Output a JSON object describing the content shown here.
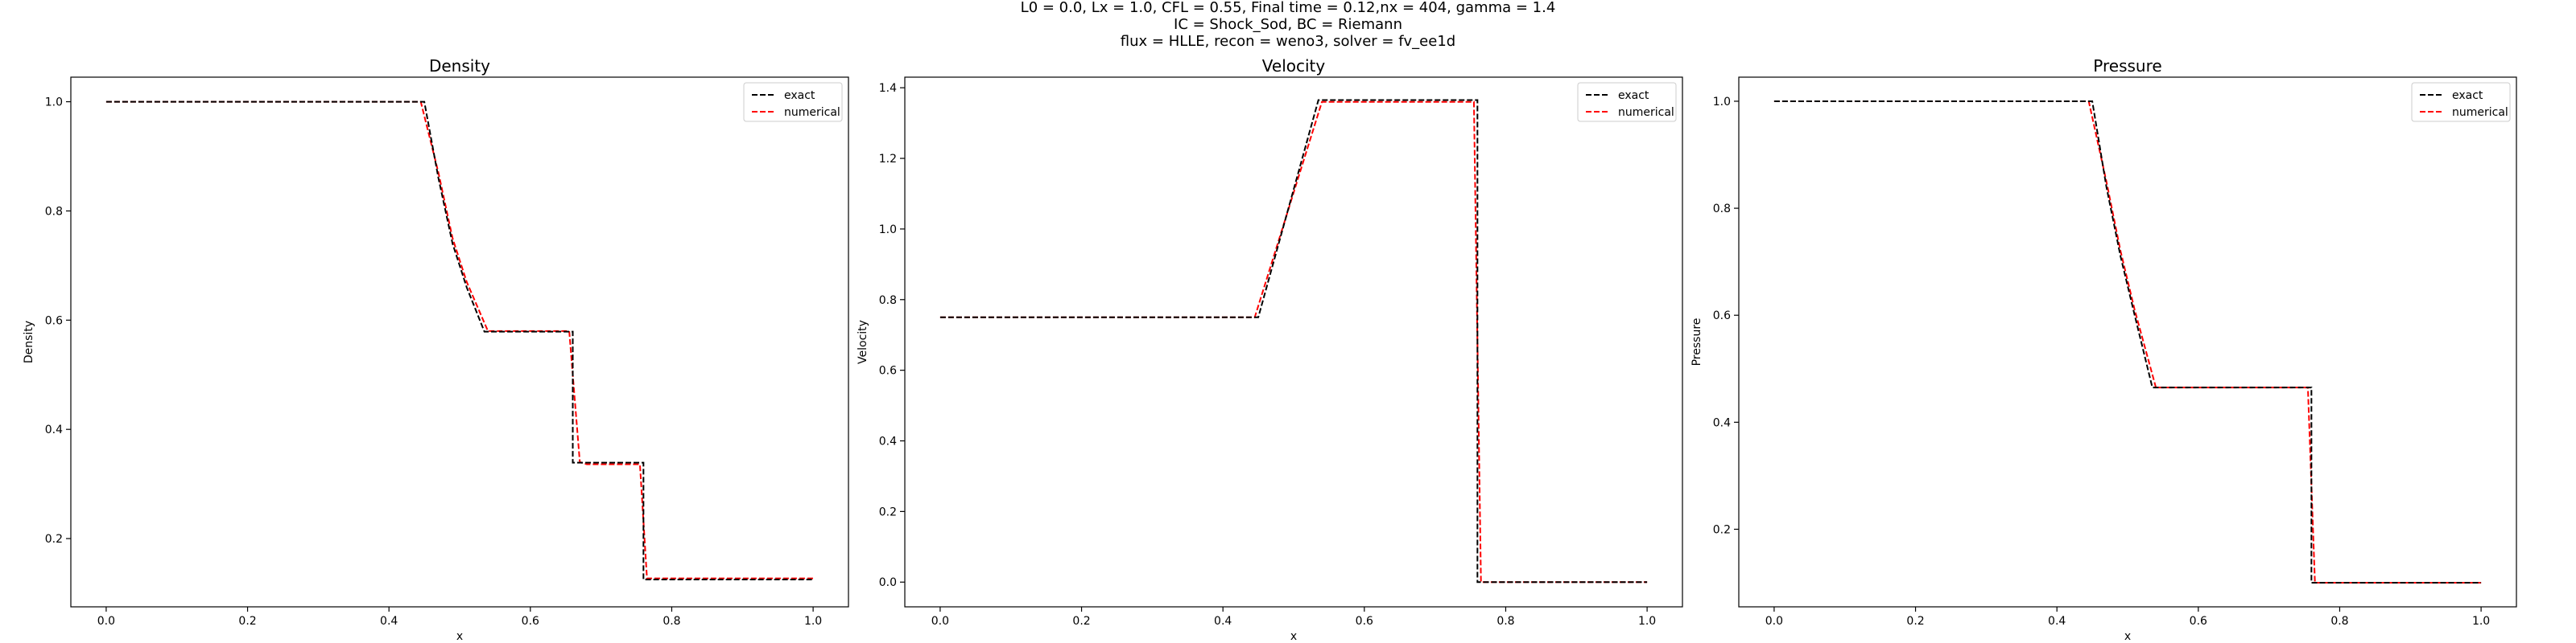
{
  "figure": {
    "suptitle": [
      "L0 = 0.0, Lx = 1.0, CFL = 0.55, Final time = 0.12,nx = 404, gamma = 1.4",
      "IC = Shock_Sod, BC = Riemann",
      "flux = HLLE, recon = weno3, solver = fv_ee1d"
    ]
  },
  "colors": {
    "exact": "#000000",
    "numerical": "#ff0000",
    "axes": "#000000"
  },
  "chart_data": [
    {
      "type": "line",
      "title": "Density",
      "xlabel": "x",
      "ylabel": "Density",
      "xlim": [
        -0.05,
        1.05
      ],
      "ylim": [
        0.075,
        1.045
      ],
      "xticks": [
        0.0,
        0.2,
        0.4,
        0.6,
        0.8,
        1.0
      ],
      "xtick_labels": [
        "0.0",
        "0.2",
        "0.4",
        "0.6",
        "0.8",
        "1.0"
      ],
      "yticks": [
        0.2,
        0.4,
        0.6,
        0.8,
        1.0
      ],
      "ytick_labels": [
        "0.2",
        "0.4",
        "0.6",
        "0.8",
        "1.0"
      ],
      "legend": "top-right",
      "grid": false,
      "series": [
        {
          "name": "exact",
          "style": "dashed",
          "x": [
            0.0,
            0.45,
            0.47,
            0.49,
            0.51,
            0.535,
            0.66,
            0.66,
            0.76,
            0.76,
            1.0
          ],
          "y": [
            1.0,
            1.0,
            0.86,
            0.74,
            0.66,
            0.579,
            0.579,
            0.339,
            0.339,
            0.125,
            0.125
          ]
        },
        {
          "name": "numerical",
          "style": "dashed",
          "x": [
            0.0,
            0.445,
            0.47,
            0.49,
            0.51,
            0.54,
            0.655,
            0.67,
            0.68,
            0.755,
            0.765,
            1.0
          ],
          "y": [
            1.0,
            1.0,
            0.87,
            0.75,
            0.67,
            0.58,
            0.58,
            0.34,
            0.336,
            0.336,
            0.127,
            0.127
          ]
        }
      ]
    },
    {
      "type": "line",
      "title": "Velocity",
      "xlabel": "x",
      "ylabel": "Velocity",
      "xlim": [
        -0.05,
        1.05
      ],
      "ylim": [
        -0.07,
        1.43
      ],
      "xticks": [
        0.0,
        0.2,
        0.4,
        0.6,
        0.8,
        1.0
      ],
      "xtick_labels": [
        "0.0",
        "0.2",
        "0.4",
        "0.6",
        "0.8",
        "1.0"
      ],
      "yticks": [
        0.0,
        0.2,
        0.4,
        0.6,
        0.8,
        1.0,
        1.2,
        1.4
      ],
      "ytick_labels": [
        "0.0",
        "0.2",
        "0.4",
        "0.6",
        "0.8",
        "1.0",
        "1.2",
        "1.4"
      ],
      "legend": "top-right",
      "grid": false,
      "series": [
        {
          "name": "exact",
          "style": "dashed",
          "x": [
            0.0,
            0.45,
            0.535,
            0.76,
            0.76,
            1.0
          ],
          "y": [
            0.75,
            0.75,
            1.365,
            1.365,
            0.0,
            0.0
          ]
        },
        {
          "name": "numerical",
          "style": "dashed",
          "x": [
            0.0,
            0.445,
            0.54,
            0.755,
            0.765,
            1.0
          ],
          "y": [
            0.75,
            0.75,
            1.36,
            1.36,
            0.0,
            0.0
          ]
        }
      ]
    },
    {
      "type": "line",
      "title": "Pressure",
      "xlabel": "x",
      "ylabel": "Pressure",
      "xlim": [
        -0.05,
        1.05
      ],
      "ylim": [
        0.055,
        1.045
      ],
      "xticks": [
        0.0,
        0.2,
        0.4,
        0.6,
        0.8,
        1.0
      ],
      "xtick_labels": [
        "0.0",
        "0.2",
        "0.4",
        "0.6",
        "0.8",
        "1.0"
      ],
      "yticks": [
        0.2,
        0.4,
        0.6,
        0.8,
        1.0
      ],
      "ytick_labels": [
        "0.2",
        "0.4",
        "0.6",
        "0.8",
        "1.0"
      ],
      "legend": "top-right",
      "grid": false,
      "series": [
        {
          "name": "exact",
          "style": "dashed",
          "x": [
            0.0,
            0.45,
            0.47,
            0.49,
            0.51,
            0.535,
            0.76,
            0.76,
            1.0
          ],
          "y": [
            1.0,
            1.0,
            0.84,
            0.71,
            0.6,
            0.465,
            0.465,
            0.1,
            0.1
          ]
        },
        {
          "name": "numerical",
          "style": "dashed",
          "x": [
            0.0,
            0.445,
            0.47,
            0.49,
            0.51,
            0.54,
            0.755,
            0.765,
            1.0
          ],
          "y": [
            1.0,
            1.0,
            0.85,
            0.72,
            0.61,
            0.465,
            0.465,
            0.1,
            0.1
          ]
        }
      ]
    }
  ]
}
